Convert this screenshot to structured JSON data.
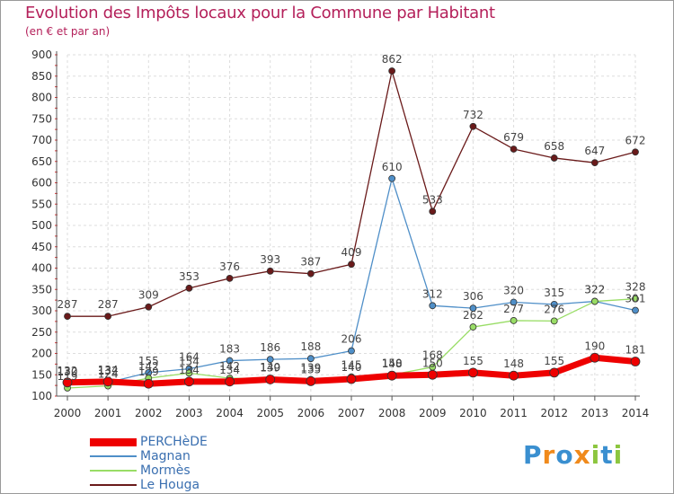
{
  "header": {
    "title": "Evolution des Impôts locaux pour la Commune par Habitant",
    "subtitle": "(en € et par an)"
  },
  "logo": {
    "letters": [
      "P",
      "r",
      "o",
      "x",
      "i",
      "t",
      "i"
    ],
    "colors": [
      "#3a8fd0",
      "#f08a1c",
      "#3a8fd0",
      "#f08a1c",
      "#8cc63f",
      "#3a8fd0",
      "#8cc63f"
    ]
  },
  "chart_data": {
    "type": "line",
    "title": "Evolution des Impôts locaux pour la Commune par Habitant",
    "subtitle": "(en € et par an)",
    "xlabel": "",
    "ylabel": "",
    "categories": [
      "2000",
      "2001",
      "2002",
      "2003",
      "2004",
      "2005",
      "2006",
      "2007",
      "2008",
      "2009",
      "2010",
      "2011",
      "2012",
      "2013",
      "2014"
    ],
    "ylim": [
      100,
      900
    ],
    "yticks": [
      100,
      150,
      200,
      250,
      300,
      350,
      400,
      450,
      500,
      550,
      600,
      650,
      700,
      750,
      800,
      850,
      900
    ],
    "grid": true,
    "legend_position": "bottom-left",
    "series": [
      {
        "name": "PERCHèDE",
        "color": "#ee0000",
        "values": [
          132,
          134,
          129,
          134,
          134,
          139,
          135,
          140,
          148,
          150,
          155,
          148,
          155,
          190,
          181
        ]
      },
      {
        "name": "Magnan",
        "color": "#4f8fc8",
        "values": [
          130,
          132,
          155,
          164,
          183,
          186,
          188,
          206,
          610,
          312,
          306,
          320,
          315,
          322,
          301
        ]
      },
      {
        "name": "Mormès",
        "color": "#99dd66",
        "values": [
          119,
          124,
          142,
          154,
          142,
          140,
          139,
          145,
          150,
          168,
          262,
          277,
          276,
          322,
          328
        ]
      },
      {
        "name": "Le Houga",
        "color": "#6a1a1a",
        "values": [
          287,
          287,
          309,
          353,
          376,
          393,
          387,
          409,
          862,
          533,
          732,
          679,
          658,
          647,
          672
        ]
      }
    ]
  }
}
